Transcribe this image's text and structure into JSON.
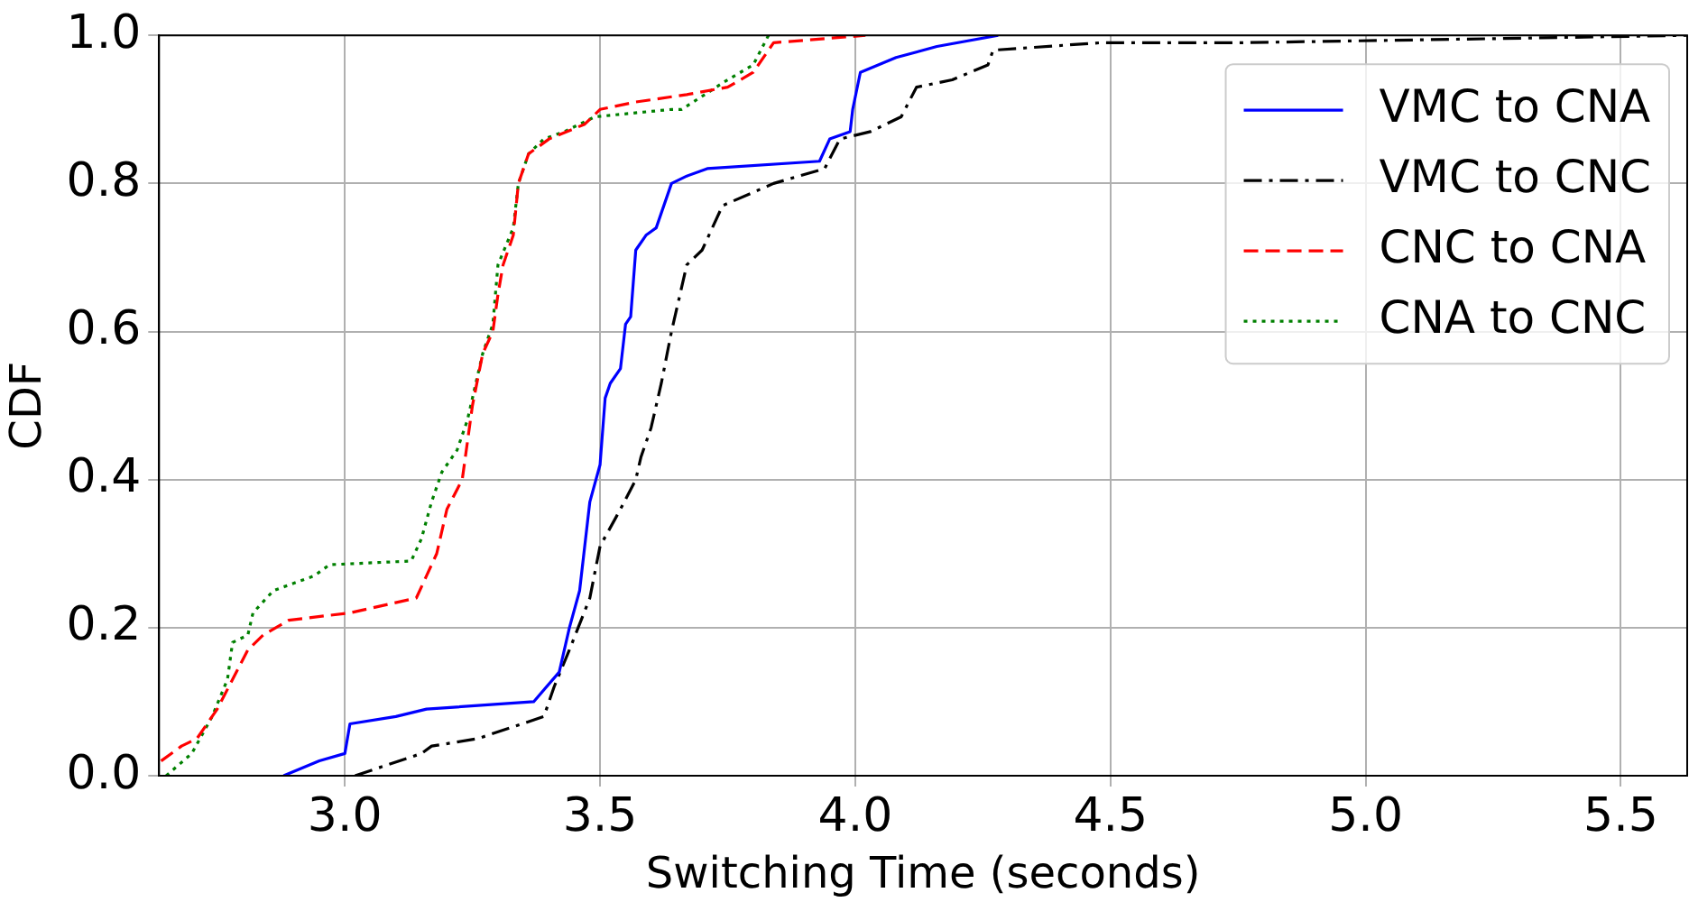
{
  "chart_data": {
    "type": "line",
    "xlabel": "Switching Time (seconds)",
    "ylabel": "CDF",
    "xlim": [
      2.636,
      5.63
    ],
    "ylim": [
      0,
      1
    ],
    "xticks": [
      {
        "value": 3,
        "label": "3.0"
      },
      3.5,
      {
        "value": 4,
        "label": "4.0"
      },
      4.5,
      {
        "value": 5,
        "label": "5.0"
      },
      5.5
    ],
    "yticks": [
      {
        "value": 0,
        "label": "0.0"
      },
      0.2,
      0.4,
      0.6,
      0.8,
      {
        "value": 1,
        "label": "1.0"
      }
    ],
    "grid": true,
    "legend": "top right",
    "marker": "none",
    "series": [
      {
        "name": "VMC to CNA",
        "color": "#0000ff",
        "line_style": "solid",
        "x": [
          2.88,
          2.95,
          3.0,
          3.01,
          3.1,
          3.16,
          3.37,
          3.42,
          3.44,
          3.46,
          3.48,
          3.5,
          3.51,
          3.52,
          3.54,
          3.55,
          3.56,
          3.57,
          3.59,
          3.61,
          3.64,
          3.67,
          3.71,
          3.93,
          3.95,
          3.99,
          3.995,
          4.01,
          4.08,
          4.16,
          4.28
        ],
        "values": [
          0.0,
          0.02,
          0.03,
          0.07,
          0.08,
          0.09,
          0.1,
          0.14,
          0.2,
          0.25,
          0.37,
          0.42,
          0.51,
          0.53,
          0.55,
          0.61,
          0.62,
          0.71,
          0.73,
          0.74,
          0.8,
          0.81,
          0.82,
          0.83,
          0.86,
          0.87,
          0.9,
          0.95,
          0.97,
          0.985,
          1.0
        ]
      },
      {
        "name": "VMC to CNC",
        "color": "#000000",
        "line_style": "dashdot",
        "x": [
          3.02,
          3.15,
          3.17,
          3.26,
          3.39,
          3.41,
          3.44,
          3.48,
          3.5,
          3.54,
          3.57,
          3.58,
          3.6,
          3.62,
          3.64,
          3.67,
          3.7,
          3.74,
          3.84,
          3.94,
          3.97,
          4.03,
          4.09,
          4.12,
          4.19,
          4.26,
          4.27,
          4.48,
          4.75,
          5.2,
          5.63
        ],
        "values": [
          0.0,
          0.03,
          0.04,
          0.05,
          0.08,
          0.12,
          0.17,
          0.24,
          0.31,
          0.36,
          0.4,
          0.43,
          0.47,
          0.53,
          0.6,
          0.69,
          0.71,
          0.77,
          0.8,
          0.82,
          0.86,
          0.87,
          0.89,
          0.93,
          0.94,
          0.96,
          0.98,
          0.99,
          0.99,
          0.995,
          1.0
        ]
      },
      {
        "name": "CNC to CNA",
        "color": "#ff0000",
        "line_style": "dashed",
        "x": [
          2.64,
          2.68,
          2.71,
          2.73,
          2.75,
          2.78,
          2.81,
          2.84,
          2.89,
          3.01,
          3.14,
          3.16,
          3.18,
          3.2,
          3.23,
          3.25,
          3.27,
          3.29,
          3.3,
          3.31,
          3.33,
          3.34,
          3.36,
          3.4,
          3.47,
          3.5,
          3.57,
          3.67,
          3.75,
          3.8,
          3.84,
          4.02
        ],
        "values": [
          0.02,
          0.04,
          0.05,
          0.07,
          0.09,
          0.13,
          0.17,
          0.19,
          0.21,
          0.22,
          0.24,
          0.27,
          0.3,
          0.36,
          0.4,
          0.5,
          0.57,
          0.6,
          0.65,
          0.69,
          0.73,
          0.8,
          0.84,
          0.86,
          0.88,
          0.9,
          0.91,
          0.92,
          0.93,
          0.95,
          0.99,
          1.0
        ]
      },
      {
        "name": "CNA to CNC",
        "color": "#008000",
        "line_style": "dotted",
        "x": [
          2.65,
          2.7,
          2.74,
          2.77,
          2.78,
          2.81,
          2.82,
          2.86,
          2.94,
          2.97,
          3.13,
          3.15,
          3.17,
          3.19,
          3.22,
          3.24,
          3.27,
          3.29,
          3.3,
          3.33,
          3.34,
          3.36,
          3.39,
          3.43,
          3.49,
          3.64,
          3.66,
          3.75,
          3.8,
          3.83
        ],
        "values": [
          0.0,
          0.03,
          0.08,
          0.13,
          0.18,
          0.19,
          0.22,
          0.25,
          0.27,
          0.285,
          0.29,
          0.32,
          0.37,
          0.41,
          0.44,
          0.48,
          0.57,
          0.61,
          0.69,
          0.74,
          0.8,
          0.84,
          0.86,
          0.87,
          0.89,
          0.9,
          0.9,
          0.94,
          0.96,
          1.0
        ]
      }
    ]
  }
}
